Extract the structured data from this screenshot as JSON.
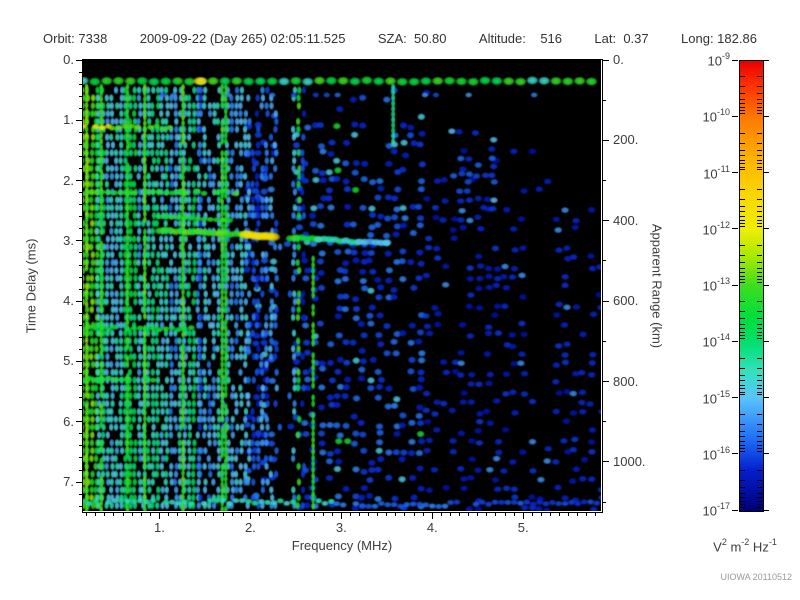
{
  "header": {
    "fields": [
      "Orbit: 7338",
      "2009-09-22 (Day 265) 02:05:11.525",
      "SZA:  50.80",
      "Altitude:    516",
      "Lat:  0.37",
      "Long: 182.86"
    ]
  },
  "watermark": "UIOWA 20110512",
  "chart_data": {
    "type": "heatmap",
    "title": "",
    "description": "Radar sounder ionogram spectrogram: spectral density vs frequency and time delay",
    "axes": {
      "x": {
        "label": "Frequency (MHz)",
        "lim": [
          0.16,
          5.855
        ],
        "minor_step": 0.1,
        "major": [
          {
            "v": 1,
            "t": "1."
          },
          {
            "v": 2,
            "t": "2."
          },
          {
            "v": 3,
            "t": "3."
          },
          {
            "v": 4,
            "t": "4."
          },
          {
            "v": 5,
            "t": "5."
          }
        ]
      },
      "left": {
        "label": "Time Delay (ms)",
        "lim": [
          0,
          7.48
        ],
        "minor_step": 0.2,
        "major": [
          {
            "v": 0,
            "t": "0."
          },
          {
            "v": 1,
            "t": "1."
          },
          {
            "v": 2,
            "t": "2."
          },
          {
            "v": 3,
            "t": "3."
          },
          {
            "v": 4,
            "t": "4."
          },
          {
            "v": 5,
            "t": "5."
          },
          {
            "v": 6,
            "t": "6."
          },
          {
            "v": 7,
            "t": "7."
          }
        ]
      },
      "right": {
        "label": "Apparent Range (km)",
        "lim": [
          0,
          1122
        ],
        "minor_step": 100,
        "major": [
          {
            "v": 0,
            "t": "0."
          },
          {
            "v": 200,
            "t": "200."
          },
          {
            "v": 400,
            "t": "400."
          },
          {
            "v": 600,
            "t": "600."
          },
          {
            "v": 800,
            "t": "800."
          },
          {
            "v": 1000,
            "t": "1000."
          }
        ]
      }
    },
    "colorbar": {
      "scale": "log10",
      "range_exp": [
        -9,
        -17
      ],
      "exps": [
        "-9",
        "-10",
        "-11",
        "-12",
        "-13",
        "-14",
        "-15",
        "-16",
        "-17"
      ],
      "units_parts": [
        {
          "t": "V",
          "e": "2"
        },
        {
          "t": " m",
          "e": "-2"
        },
        {
          "t": " Hz",
          "e": "-1"
        }
      ],
      "stops": [
        {
          "p": 0,
          "c": "rgb(232,0,0)"
        },
        {
          "p": 5,
          "c": "rgb(255,45,0)"
        },
        {
          "p": 12.5,
          "c": "rgb(255,120,0)"
        },
        {
          "p": 22,
          "c": "rgb(255,180,0)"
        },
        {
          "p": 30,
          "c": "rgb(250,215,0)"
        },
        {
          "p": 37.5,
          "c": "rgb(238,238,0)"
        },
        {
          "p": 44,
          "c": "rgb(160,232,0)"
        },
        {
          "p": 50,
          "c": "rgb(60,222,30)"
        },
        {
          "p": 57,
          "c": "rgb(0,222,60)"
        },
        {
          "p": 62.5,
          "c": "rgb(0,224,110)"
        },
        {
          "p": 69,
          "c": "rgb(50,225,190)"
        },
        {
          "p": 75,
          "c": "rgb(90,195,252)"
        },
        {
          "p": 84,
          "c": "rgb(30,110,248)"
        },
        {
          "p": 91,
          "c": "rgb(5,30,205)"
        },
        {
          "p": 100,
          "c": "rgb(0,0,120)"
        }
      ]
    },
    "colormap": [
      {
        "v": -17.0,
        "c": [
          0,
          0,
          120
        ]
      },
      {
        "v": -16.6,
        "c": [
          0,
          20,
          185
        ]
      },
      {
        "v": -16.1,
        "c": [
          10,
          45,
          225
        ]
      },
      {
        "v": -15.6,
        "c": [
          30,
          110,
          248
        ]
      },
      {
        "v": -15.0,
        "c": [
          90,
          195,
          252
        ]
      },
      {
        "v": -14.5,
        "c": [
          50,
          225,
          190
        ]
      },
      {
        "v": -14.0,
        "c": [
          0,
          224,
          110
        ]
      },
      {
        "v": -13.6,
        "c": [
          0,
          222,
          60
        ]
      },
      {
        "v": -13.0,
        "c": [
          60,
          222,
          30
        ]
      },
      {
        "v": -12.5,
        "c": [
          160,
          232,
          0
        ]
      },
      {
        "v": -12.0,
        "c": [
          238,
          238,
          0
        ]
      },
      {
        "v": -11.4,
        "c": [
          250,
          215,
          0
        ]
      },
      {
        "v": -10.8,
        "c": [
          255,
          180,
          0
        ]
      },
      {
        "v": -10.0,
        "c": [
          255,
          120,
          0
        ]
      },
      {
        "v": -9.4,
        "c": [
          255,
          45,
          0
        ]
      },
      {
        "v": -9.0,
        "c": [
          232,
          0,
          0
        ]
      }
    ],
    "render": {
      "seed": 1337,
      "top_black_t": 0.26,
      "surface_band": {
        "t": 0.35,
        "f0": 0.16,
        "f1": 5.85,
        "step": 0.13,
        "v_mean": -13.4,
        "v_sd": 0.45,
        "cyan_prob": 0.18,
        "rx": 6.5,
        "ry": 4.6,
        "bright": [
          {
            "f": 1.45,
            "v": -11.5
          }
        ]
      },
      "sub_band_row": {
        "t": 0.58,
        "prob": 0.28,
        "v": -15.6
      },
      "streaks": [
        {
          "f": 3.57,
          "t0": 0.45,
          "t1": 1.35,
          "v": -14.3
        }
      ],
      "stripe_zones": [
        {
          "f0": 0.16,
          "f1": 0.33,
          "v": -13.1,
          "density": 0.93,
          "green_prob": 0.5
        },
        {
          "f0": 0.33,
          "f1": 0.78,
          "v": -14.4,
          "density": 0.85,
          "green_prob": 0.12
        },
        {
          "f0": 0.78,
          "f1": 1.45,
          "v": -14.6,
          "density": 0.8,
          "green_prob": 0.1
        },
        {
          "f0": 1.45,
          "f1": 1.98,
          "v": -15.2,
          "density": 0.65,
          "green_prob": 0.06
        },
        {
          "f0": 1.98,
          "f1": 2.62,
          "v": -15.6,
          "density": 0.52,
          "green_prob": 0.02
        }
      ],
      "green_stripes": [
        {
          "f": 0.2,
          "t0": 0.45,
          "t1": 7.45,
          "v": -12.8
        },
        {
          "f": 0.36,
          "t0": 0.45,
          "t1": 7.45,
          "v": -13.1
        },
        {
          "f": 0.65,
          "t0": 0.45,
          "t1": 7.45,
          "v": -13.2
        },
        {
          "f": 0.84,
          "t0": 0.45,
          "t1": 7.45,
          "v": -13.0
        },
        {
          "f": 1.26,
          "t0": 0.45,
          "t1": 7.45,
          "v": -13.0
        },
        {
          "f": 1.69,
          "t0": 0.45,
          "t1": 7.45,
          "v": -13.1
        },
        {
          "f": 1.73,
          "t0": 0.45,
          "t1": 7.45,
          "v": -13.3
        },
        {
          "f": 2.69,
          "t0": 3.3,
          "t1": 7.45,
          "v": -13.2
        }
      ],
      "hbands": [
        {
          "f0": 0.16,
          "f1": 0.48,
          "t": 1.12,
          "v": -11.8
        },
        {
          "f0": 0.48,
          "f1": 1.15,
          "t": 1.12,
          "v": -13.0
        },
        {
          "f0": 0.16,
          "f1": 1.9,
          "t": 2.2,
          "v": -13.2
        },
        {
          "f0": 0.16,
          "f1": 1.6,
          "t": 4.45,
          "v": -13.5
        },
        {
          "f0": 0.16,
          "f1": 0.95,
          "t": 5.3,
          "v": -13.5
        },
        {
          "f0": 0.16,
          "f1": 2.95,
          "t": 7.33,
          "v": -14.5
        },
        {
          "f0": 2.95,
          "f1": 4.2,
          "t": 7.38,
          "v": -15.6
        },
        {
          "f0": 4.2,
          "f1": 5.85,
          "t": 7.35,
          "v": -15.9
        }
      ],
      "trace": {
        "pts": [
          [
            1.02,
            2.82
          ],
          [
            1.5,
            2.86
          ],
          [
            2.0,
            2.9
          ],
          [
            2.5,
            2.95
          ],
          [
            3.0,
            3.0
          ],
          [
            3.55,
            3.04
          ]
        ],
        "segments": [
          {
            "f0": 1.0,
            "f1": 1.95,
            "v": -13.0
          },
          {
            "f0": 1.95,
            "f1": 2.32,
            "v": -11.7
          },
          {
            "f0": 2.32,
            "f1": 2.75,
            "v": -13.3
          },
          {
            "f0": 2.75,
            "f1": 3.2,
            "v": -14.4
          },
          {
            "f0": 3.2,
            "f1": 3.55,
            "v": -15.0
          }
        ],
        "upper_row": {
          "f0": 1.0,
          "f1": 1.78,
          "dt": -0.22,
          "v": -13.3
        }
      },
      "mid_field": {
        "f0": 1.98,
        "f1": 3.95,
        "t0": 0.5,
        "t1": 7.45,
        "fstep": 0.09,
        "tstep": 0.15,
        "density": 0.45,
        "v": -15.9,
        "sd": 0.5,
        "cyan_prob": 0.07,
        "green_prob": 0.012
      },
      "right_field": {
        "f0": 3.95,
        "f1": 5.85,
        "t0": 0.4,
        "t1": 7.45,
        "fstep": 0.095,
        "tstep": 0.16,
        "density": 0.34,
        "v": -16.3,
        "sd": 0.35,
        "cyan_prob": 0.05
      },
      "cluster": {
        "f0": 4.22,
        "f1": 4.68,
        "t0": 1.2,
        "t1": 2.6,
        "fstep": 0.09,
        "tstep": 0.14,
        "density": 0.5,
        "v": -15.9,
        "sd": 0.4,
        "cyan_prob": 0.15
      },
      "gaps": [
        {
          "f0": 2.31,
          "f1": 2.44,
          "t0": 0.45,
          "t1": 7.45,
          "keep": 0.07
        },
        {
          "f0": 3.25,
          "f1": 3.42,
          "t0": 0.45,
          "t1": 1.9,
          "keep": 0.1
        },
        {
          "f0": 5.08,
          "f1": 5.34,
          "t0": 2.3,
          "t1": 6.2,
          "keep": 0.18
        }
      ]
    }
  }
}
